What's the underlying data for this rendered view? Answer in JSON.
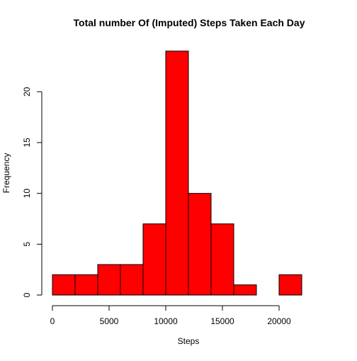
{
  "chart_data": {
    "type": "bar",
    "title": "Total number Of (Imputed) Steps Taken Each Day",
    "xlabel": "Steps",
    "ylabel": "Frequency",
    "bins": [
      {
        "start": 0,
        "end": 2000,
        "count": 2
      },
      {
        "start": 2000,
        "end": 4000,
        "count": 2
      },
      {
        "start": 4000,
        "end": 6000,
        "count": 3
      },
      {
        "start": 6000,
        "end": 8000,
        "count": 3
      },
      {
        "start": 8000,
        "end": 10000,
        "count": 7
      },
      {
        "start": 10000,
        "end": 12000,
        "count": 24
      },
      {
        "start": 12000,
        "end": 14000,
        "count": 10
      },
      {
        "start": 14000,
        "end": 16000,
        "count": 7
      },
      {
        "start": 16000,
        "end": 18000,
        "count": 1
      },
      {
        "start": 18000,
        "end": 20000,
        "count": 0
      },
      {
        "start": 20000,
        "end": 22000,
        "count": 2
      }
    ],
    "xlim": [
      0,
      24000
    ],
    "ylim": [
      0,
      24
    ],
    "x_ticks": [
      0,
      5000,
      10000,
      15000,
      20000
    ],
    "y_ticks": [
      0,
      5,
      10,
      15,
      20
    ],
    "bar_color": "#ff0000",
    "border_color": "#000000",
    "grid": false,
    "legend": "none"
  }
}
